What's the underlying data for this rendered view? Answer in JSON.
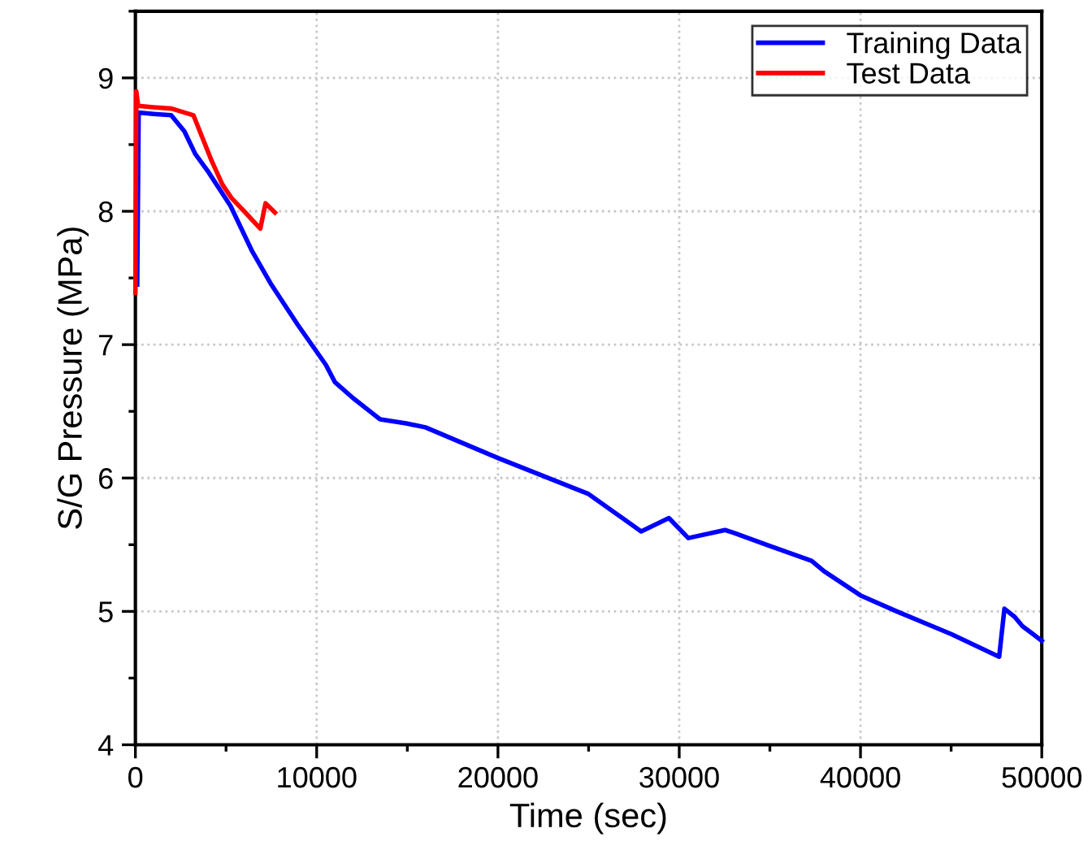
{
  "chart_data": {
    "type": "line",
    "xlabel": "Time (sec)",
    "ylabel": "S/G Pressure (MPa)",
    "xlim": [
      0,
      50000
    ],
    "ylim": [
      4,
      9.5
    ],
    "xticks": [
      0,
      10000,
      20000,
      30000,
      40000,
      50000
    ],
    "yticks": [
      4,
      5,
      6,
      7,
      8,
      9
    ],
    "grid": true,
    "legend": "top right",
    "line_style": "solid",
    "series": [
      {
        "name": "Training Data",
        "color": "#0000ff",
        "x": [
          100,
          180,
          1000,
          1970,
          2700,
          3300,
          4000,
          5250,
          6440,
          7500,
          8950,
          10500,
          11000,
          12000,
          13500,
          14940,
          16000,
          20000,
          25000,
          27900,
          29430,
          30500,
          32530,
          33000,
          35000,
          37300,
          38000,
          40000,
          42000,
          45000,
          47650,
          47940,
          48500,
          48930,
          50000
        ],
        "values": [
          7.45,
          8.74,
          8.73,
          8.72,
          8.6,
          8.43,
          8.3,
          8.04,
          7.7,
          7.45,
          7.15,
          6.85,
          6.72,
          6.6,
          6.44,
          6.41,
          6.38,
          6.15,
          5.88,
          5.6,
          5.7,
          5.55,
          5.61,
          5.59,
          5.49,
          5.38,
          5.3,
          5.12,
          5.0,
          4.83,
          4.66,
          5.02,
          4.96,
          4.89,
          4.78
        ]
      },
      {
        "name": "Test Data",
        "color": "#ff0000",
        "x": [
          0,
          50,
          150,
          1000,
          2000,
          3200,
          3700,
          4200,
          4800,
          5300,
          6000,
          6890,
          7180,
          7700
        ],
        "values": [
          7.39,
          8.9,
          8.79,
          8.78,
          8.77,
          8.72,
          8.55,
          8.38,
          8.2,
          8.1,
          8.0,
          7.87,
          8.06,
          7.99
        ]
      }
    ]
  }
}
